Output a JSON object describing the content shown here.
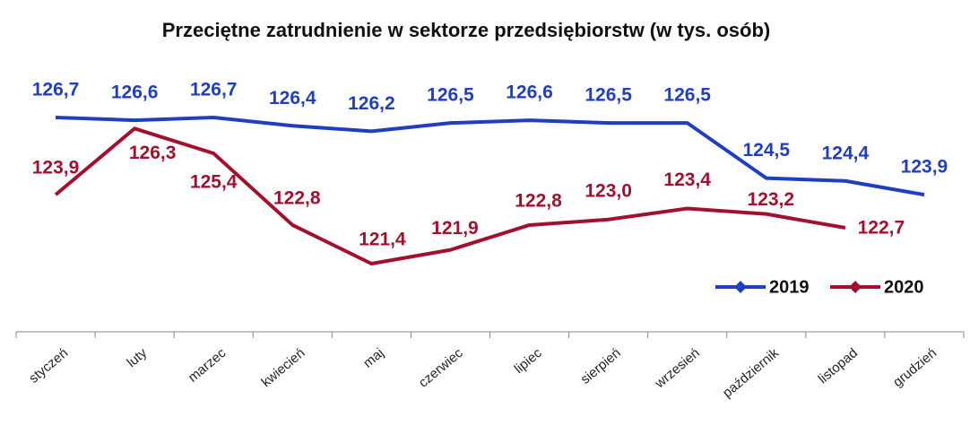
{
  "chart_data": {
    "type": "line",
    "title": "Przeciętne zatrudnienie w sektorze przedsiębiorstw (w tys. osób)",
    "categories": [
      "styczeń",
      "luty",
      "marzec",
      "kwiecień",
      "maj",
      "czerwiec",
      "lipiec",
      "sierpień",
      "wrzesień",
      "październik",
      "listopad",
      "grudzień"
    ],
    "series": [
      {
        "name": "2019",
        "color": "#1f3fbf",
        "values": [
          126.7,
          126.6,
          126.7,
          126.4,
          126.2,
          126.5,
          126.6,
          126.5,
          126.5,
          124.5,
          124.4,
          123.9
        ],
        "value_labels": [
          "126,7",
          "126,6",
          "126,7",
          "126,4",
          "126,2",
          "126,5",
          "126,6",
          "126,5",
          "126,5",
          "124,5",
          "124,4",
          "123,9"
        ]
      },
      {
        "name": "2020",
        "color": "#a3102e",
        "values": [
          123.9,
          126.3,
          125.4,
          122.8,
          121.4,
          121.9,
          122.8,
          123.0,
          123.4,
          123.2,
          122.7,
          null
        ],
        "value_labels": [
          "123,9",
          "126,3",
          "125,4",
          "122,8",
          "121,4",
          "121,9",
          "122,8",
          "123,0",
          "123,4",
          "123,2",
          "122,7",
          null
        ]
      }
    ],
    "legend": "bottom-right"
  }
}
